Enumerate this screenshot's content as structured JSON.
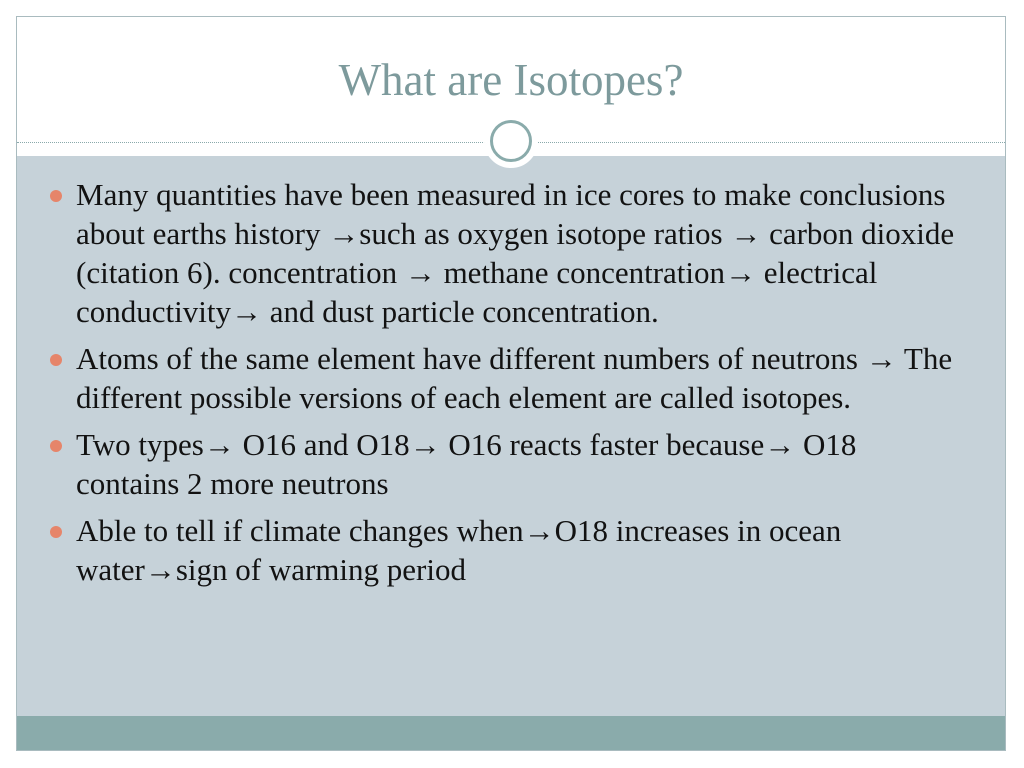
{
  "slide": {
    "title": "What are Isotopes?",
    "bullets": [
      "Many quantities have been measured in ice cores to make conclusions about earths history →such as oxygen isotope ratios → carbon dioxide (citation 6). concentration → methane concentration→ electrical conductivity→ and dust particle concentration.",
      "Atoms of the same element have different numbers of neutrons → The different possible versions of each element are called isotopes.",
      "Two types→ O16 and O18→ O16 reacts faster because→ O18 contains 2 more neutrons",
      "Able to tell if climate changes when→O18 increases in ocean water→sign of warming period"
    ]
  },
  "colors": {
    "title": "#7d9a9c",
    "content_background": "#c6d2d9",
    "footer_bar": "#8aabab",
    "bullet_dot": "#e6856a",
    "text": "#121212"
  },
  "icons": {
    "divider_ornament": "circle-ring-icon",
    "bullet_marker": "bullet-dot-icon"
  }
}
